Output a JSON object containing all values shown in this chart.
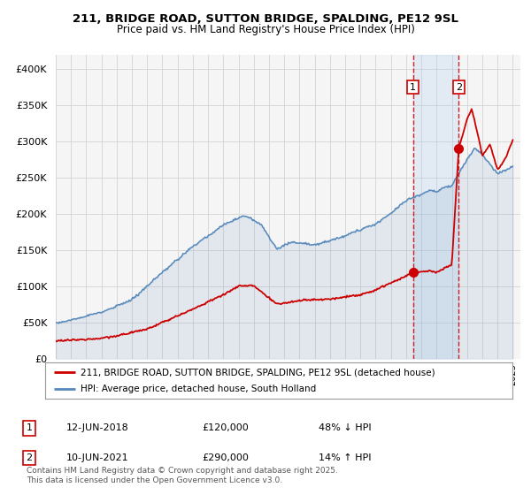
{
  "title": "211, BRIDGE ROAD, SUTTON BRIDGE, SPALDING, PE12 9SL",
  "subtitle": "Price paid vs. HM Land Registry's House Price Index (HPI)",
  "ylim": [
    0,
    420000
  ],
  "yticks": [
    0,
    50000,
    100000,
    150000,
    200000,
    250000,
    300000,
    350000,
    400000
  ],
  "legend_line1": "211, BRIDGE ROAD, SUTTON BRIDGE, SPALDING, PE12 9SL (detached house)",
  "legend_line2": "HPI: Average price, detached house, South Holland",
  "transaction1_date": "12-JUN-2018",
  "transaction1_price": "£120,000",
  "transaction1_note": "48% ↓ HPI",
  "transaction2_date": "10-JUN-2021",
  "transaction2_price": "£290,000",
  "transaction2_note": "14% ↑ HPI",
  "footer": "Contains HM Land Registry data © Crown copyright and database right 2025.\nThis data is licensed under the Open Government Licence v3.0.",
  "line_color_red": "#cc0000",
  "line_color_blue": "#5588bb",
  "shade_color": "#aaccee",
  "background_color": "#ffffff",
  "plot_bg_color": "#f5f5f5",
  "transaction1_year": 2018.45,
  "transaction2_year": 2021.45,
  "transaction1_value": 120000,
  "transaction2_value": 290000,
  "xlim_left": 1995,
  "xlim_right": 2025.5
}
